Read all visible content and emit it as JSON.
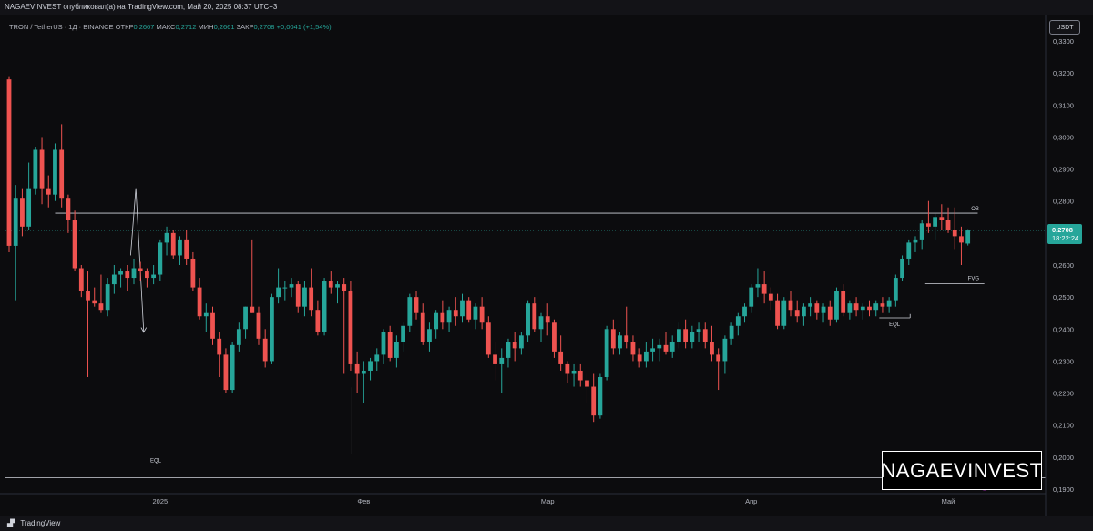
{
  "publisher_line": "NAGAEVINVEST опубликовал(а) на TradingView.com, Май 20, 2025 08:37 UTC+3",
  "legend": {
    "symbol": "TRON / TetherUS · 1Д · BINANCE",
    "open_label": "ОТКР",
    "open": "0,2667",
    "high_label": "МАКС",
    "high": "0,2712",
    "low_label": "МИН",
    "low": "0,2661",
    "close_label": "ЗАКР",
    "close": "0,2708",
    "change": "+0,0041 (+1,54%)"
  },
  "currency": "USDT",
  "last_price": {
    "value": "0,2708",
    "countdown": "18:22:24"
  },
  "footer_brand": "TradingView",
  "watermark": "NAGAEVINVEST",
  "colors": {
    "up": "#26a69a",
    "down": "#ef5350",
    "background": "#0c0c0e",
    "price_tag": "#26a69a"
  },
  "chart_data": {
    "type": "candlestick",
    "title": "TRON / TetherUS · 1Д · BINANCE",
    "y_ticks": [
      "0,3300",
      "0,3200",
      "0,3100",
      "0,3000",
      "0,2900",
      "0,2800",
      "0,2700",
      "0,2600",
      "0,2500",
      "0,2400",
      "0,2300",
      "0,2200",
      "0,2100",
      "0,2000",
      "0,1900"
    ],
    "y_tick_values": [
      0.33,
      0.32,
      0.31,
      0.3,
      0.29,
      0.28,
      0.27,
      0.26,
      0.25,
      0.24,
      0.23,
      0.22,
      0.21,
      0.2,
      0.19
    ],
    "ylim": [
      0.1877,
      0.3365
    ],
    "x_ticks": [
      {
        "label": "2025",
        "index": 23
      },
      {
        "label": "Фев",
        "index": 54
      },
      {
        "label": "Мар",
        "index": 82
      },
      {
        "label": "Апр",
        "index": 113
      },
      {
        "label": "Май",
        "index": 143
      }
    ],
    "candles": [
      [
        0.318,
        0.319,
        0.264,
        0.266
      ],
      [
        0.266,
        0.285,
        0.249,
        0.281
      ],
      [
        0.281,
        0.284,
        0.269,
        0.272
      ],
      [
        0.272,
        0.292,
        0.271,
        0.284
      ],
      [
        0.284,
        0.297,
        0.282,
        0.296
      ],
      [
        0.296,
        0.3,
        0.279,
        0.284
      ],
      [
        0.284,
        0.288,
        0.278,
        0.282
      ],
      [
        0.282,
        0.298,
        0.28,
        0.296
      ],
      [
        0.296,
        0.304,
        0.278,
        0.281
      ],
      [
        0.281,
        0.282,
        0.27,
        0.274
      ],
      [
        0.274,
        0.277,
        0.258,
        0.259
      ],
      [
        0.259,
        0.26,
        0.25,
        0.252
      ],
      [
        0.252,
        0.258,
        0.225,
        0.249
      ],
      [
        0.249,
        0.253,
        0.247,
        0.248
      ],
      [
        0.248,
        0.257,
        0.245,
        0.246
      ],
      [
        0.246,
        0.256,
        0.244,
        0.254
      ],
      [
        0.254,
        0.26,
        0.251,
        0.257
      ],
      [
        0.257,
        0.259,
        0.253,
        0.258
      ],
      [
        0.258,
        0.26,
        0.252,
        0.256
      ],
      [
        0.256,
        0.262,
        0.254,
        0.259
      ],
      [
        0.259,
        0.261,
        0.255,
        0.258
      ],
      [
        0.258,
        0.259,
        0.253,
        0.256
      ],
      [
        0.256,
        0.26,
        0.254,
        0.257
      ],
      [
        0.257,
        0.268,
        0.255,
        0.267
      ],
      [
        0.267,
        0.272,
        0.263,
        0.27
      ],
      [
        0.27,
        0.271,
        0.262,
        0.263
      ],
      [
        0.263,
        0.269,
        0.26,
        0.268
      ],
      [
        0.268,
        0.271,
        0.26,
        0.262
      ],
      [
        0.262,
        0.264,
        0.252,
        0.253
      ],
      [
        0.253,
        0.256,
        0.243,
        0.244
      ],
      [
        0.244,
        0.248,
        0.239,
        0.245
      ],
      [
        0.245,
        0.247,
        0.235,
        0.237
      ],
      [
        0.237,
        0.239,
        0.225,
        0.232
      ],
      [
        0.232,
        0.234,
        0.22,
        0.221
      ],
      [
        0.221,
        0.236,
        0.22,
        0.235
      ],
      [
        0.235,
        0.242,
        0.233,
        0.24
      ],
      [
        0.24,
        0.247,
        0.237,
        0.247
      ],
      [
        0.247,
        0.268,
        0.245,
        0.245
      ],
      [
        0.245,
        0.247,
        0.235,
        0.237
      ],
      [
        0.237,
        0.24,
        0.228,
        0.23
      ],
      [
        0.23,
        0.251,
        0.229,
        0.25
      ],
      [
        0.25,
        0.259,
        0.248,
        0.253
      ],
      [
        0.253,
        0.255,
        0.249,
        0.253
      ],
      [
        0.253,
        0.256,
        0.25,
        0.254
      ],
      [
        0.254,
        0.255,
        0.245,
        0.247
      ],
      [
        0.247,
        0.255,
        0.244,
        0.253
      ],
      [
        0.253,
        0.259,
        0.244,
        0.246
      ],
      [
        0.246,
        0.249,
        0.238,
        0.239
      ],
      [
        0.239,
        0.256,
        0.238,
        0.255
      ],
      [
        0.255,
        0.258,
        0.251,
        0.253
      ],
      [
        0.253,
        0.255,
        0.248,
        0.254
      ],
      [
        0.254,
        0.256,
        0.226,
        0.252
      ],
      [
        0.252,
        0.255,
        0.227,
        0.229
      ],
      [
        0.229,
        0.233,
        0.22,
        0.226
      ],
      [
        0.226,
        0.23,
        0.217,
        0.227
      ],
      [
        0.227,
        0.231,
        0.224,
        0.23
      ],
      [
        0.23,
        0.234,
        0.227,
        0.232
      ],
      [
        0.232,
        0.24,
        0.229,
        0.239
      ],
      [
        0.239,
        0.241,
        0.23,
        0.231
      ],
      [
        0.231,
        0.238,
        0.228,
        0.236
      ],
      [
        0.236,
        0.242,
        0.233,
        0.241
      ],
      [
        0.241,
        0.251,
        0.239,
        0.25
      ],
      [
        0.25,
        0.252,
        0.243,
        0.245
      ],
      [
        0.245,
        0.248,
        0.235,
        0.236
      ],
      [
        0.236,
        0.242,
        0.233,
        0.24
      ],
      [
        0.24,
        0.246,
        0.237,
        0.245
      ],
      [
        0.245,
        0.249,
        0.24,
        0.242
      ],
      [
        0.242,
        0.247,
        0.239,
        0.246
      ],
      [
        0.246,
        0.25,
        0.241,
        0.244
      ],
      [
        0.244,
        0.251,
        0.242,
        0.249
      ],
      [
        0.249,
        0.25,
        0.242,
        0.243
      ],
      [
        0.243,
        0.248,
        0.24,
        0.247
      ],
      [
        0.247,
        0.25,
        0.24,
        0.242
      ],
      [
        0.242,
        0.244,
        0.231,
        0.232
      ],
      [
        0.232,
        0.236,
        0.224,
        0.229
      ],
      [
        0.229,
        0.234,
        0.22,
        0.231
      ],
      [
        0.231,
        0.237,
        0.228,
        0.236
      ],
      [
        0.236,
        0.239,
        0.23,
        0.234
      ],
      [
        0.234,
        0.239,
        0.232,
        0.238
      ],
      [
        0.238,
        0.249,
        0.236,
        0.248
      ],
      [
        0.248,
        0.25,
        0.239,
        0.24
      ],
      [
        0.24,
        0.245,
        0.236,
        0.244
      ],
      [
        0.244,
        0.248,
        0.238,
        0.242
      ],
      [
        0.242,
        0.243,
        0.231,
        0.233
      ],
      [
        0.233,
        0.238,
        0.227,
        0.229
      ],
      [
        0.229,
        0.23,
        0.223,
        0.226
      ],
      [
        0.226,
        0.229,
        0.222,
        0.227
      ],
      [
        0.227,
        0.229,
        0.222,
        0.224
      ],
      [
        0.224,
        0.226,
        0.217,
        0.222
      ],
      [
        0.222,
        0.226,
        0.211,
        0.213
      ],
      [
        0.213,
        0.226,
        0.212,
        0.225
      ],
      [
        0.225,
        0.241,
        0.224,
        0.24
      ],
      [
        0.24,
        0.243,
        0.232,
        0.234
      ],
      [
        0.234,
        0.239,
        0.232,
        0.238
      ],
      [
        0.238,
        0.247,
        0.234,
        0.236
      ],
      [
        0.236,
        0.238,
        0.23,
        0.232
      ],
      [
        0.232,
        0.234,
        0.228,
        0.23
      ],
      [
        0.23,
        0.236,
        0.228,
        0.233
      ],
      [
        0.233,
        0.237,
        0.23,
        0.234
      ],
      [
        0.234,
        0.237,
        0.23,
        0.235
      ],
      [
        0.235,
        0.239,
        0.232,
        0.233
      ],
      [
        0.233,
        0.238,
        0.231,
        0.236
      ],
      [
        0.236,
        0.242,
        0.234,
        0.24
      ],
      [
        0.24,
        0.243,
        0.234,
        0.236
      ],
      [
        0.236,
        0.241,
        0.234,
        0.239
      ],
      [
        0.239,
        0.242,
        0.236,
        0.24
      ],
      [
        0.24,
        0.242,
        0.234,
        0.236
      ],
      [
        0.236,
        0.241,
        0.23,
        0.232
      ],
      [
        0.232,
        0.234,
        0.221,
        0.23
      ],
      [
        0.23,
        0.238,
        0.226,
        0.237
      ],
      [
        0.237,
        0.242,
        0.235,
        0.241
      ],
      [
        0.241,
        0.245,
        0.238,
        0.244
      ],
      [
        0.244,
        0.248,
        0.242,
        0.247
      ],
      [
        0.247,
        0.254,
        0.245,
        0.253
      ],
      [
        0.253,
        0.259,
        0.25,
        0.254
      ],
      [
        0.254,
        0.258,
        0.248,
        0.251
      ],
      [
        0.251,
        0.253,
        0.246,
        0.249
      ],
      [
        0.249,
        0.251,
        0.24,
        0.241
      ],
      [
        0.241,
        0.25,
        0.24,
        0.249
      ],
      [
        0.249,
        0.252,
        0.244,
        0.246
      ],
      [
        0.246,
        0.249,
        0.242,
        0.244
      ],
      [
        0.244,
        0.248,
        0.241,
        0.247
      ],
      [
        0.247,
        0.25,
        0.244,
        0.248
      ],
      [
        0.248,
        0.249,
        0.243,
        0.245
      ],
      [
        0.245,
        0.248,
        0.242,
        0.247
      ],
      [
        0.247,
        0.249,
        0.241,
        0.243
      ],
      [
        0.243,
        0.253,
        0.242,
        0.252
      ],
      [
        0.252,
        0.254,
        0.244,
        0.245
      ],
      [
        0.245,
        0.249,
        0.243,
        0.248
      ],
      [
        0.248,
        0.25,
        0.244,
        0.246
      ],
      [
        0.246,
        0.248,
        0.243,
        0.247
      ],
      [
        0.247,
        0.249,
        0.244,
        0.246
      ],
      [
        0.246,
        0.249,
        0.244,
        0.248
      ],
      [
        0.248,
        0.25,
        0.245,
        0.247
      ],
      [
        0.247,
        0.25,
        0.245,
        0.249
      ],
      [
        0.249,
        0.257,
        0.247,
        0.256
      ],
      [
        0.256,
        0.263,
        0.255,
        0.262
      ],
      [
        0.262,
        0.268,
        0.26,
        0.267
      ],
      [
        0.267,
        0.269,
        0.264,
        0.268
      ],
      [
        0.268,
        0.274,
        0.265,
        0.273
      ],
      [
        0.273,
        0.28,
        0.27,
        0.272
      ],
      [
        0.272,
        0.276,
        0.268,
        0.275
      ],
      [
        0.275,
        0.279,
        0.271,
        0.274
      ],
      [
        0.274,
        0.278,
        0.27,
        0.271
      ],
      [
        0.271,
        0.278,
        0.265,
        0.269
      ],
      [
        0.269,
        0.272,
        0.26,
        0.267
      ],
      [
        0.2667,
        0.2712,
        0.2661,
        0.2708
      ]
    ],
    "annotations": [
      {
        "label": "OB",
        "price": 0.2762
      },
      {
        "label": "FVG",
        "price": 0.2542
      },
      {
        "label": "EQL",
        "price": 0.2435
      },
      {
        "label": "EQL",
        "price": 0.201
      }
    ],
    "horizontal_lines": [
      0.2762,
      0.201,
      0.1936
    ]
  }
}
